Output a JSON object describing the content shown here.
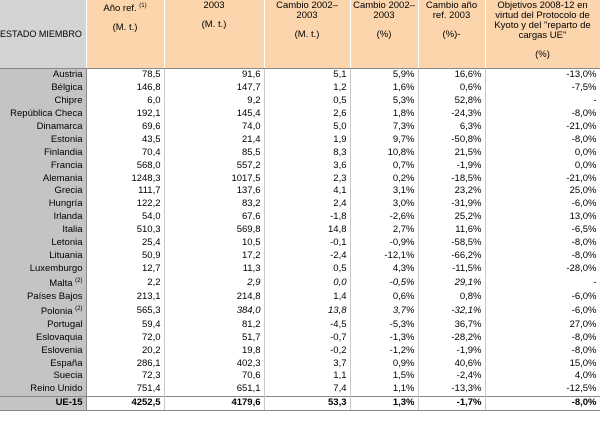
{
  "table": {
    "header": [
      {
        "text": "ESTADO MIEMBRO"
      },
      {
        "text": "Año ref.",
        "note": "(1)",
        "unit": "(M. t.)"
      },
      {
        "text": "2003",
        "unit": "(M. t.)"
      },
      {
        "text": "Cambio 2002–2003",
        "unit": "(M. t.)"
      },
      {
        "text": "Cambio 2002–2003",
        "unit": "(%)"
      },
      {
        "text": "Cambio año ref. 2003",
        "unit": "(%)-"
      },
      {
        "text": "Objetivos 2008-12 en virtud del Protocolo de Kyoto  y del \"reparto de cargas UE\"",
        "unit": "(%)"
      }
    ],
    "rows": [
      {
        "name": "Austria",
        "values": [
          "78,5",
          "91,6",
          "5,1",
          "5,9%",
          "16,6%",
          "-13,0%"
        ]
      },
      {
        "name": "Bélgica",
        "values": [
          "146,8",
          "147,7",
          "1,2",
          "1,6%",
          "0,6%",
          "-7,5%"
        ]
      },
      {
        "name": "Chipre",
        "values": [
          "6,0",
          "9,2",
          "0,5",
          "5,3%",
          "52,8%",
          "-"
        ]
      },
      {
        "name": "República Checa",
        "values": [
          "192,1",
          "145,4",
          "2,6",
          "1,8%",
          "-24,3%",
          "-8,0%"
        ]
      },
      {
        "name": "Dinamarca",
        "values": [
          "69,6",
          "74,0",
          "5,0",
          "7,3%",
          "6,3%",
          "-21,0%"
        ]
      },
      {
        "name": "Estonia",
        "values": [
          "43,5",
          "21,4",
          "1,9",
          "9,7%",
          "-50,8%",
          "-8,0%"
        ]
      },
      {
        "name": "Finlandia",
        "values": [
          "70,4",
          "85,5",
          "8,3",
          "10,8%",
          "21,5%",
          "0,0%"
        ]
      },
      {
        "name": "Francia",
        "values": [
          "568,0",
          "557,2",
          "3,6",
          "0,7%",
          "-1,9%",
          "0,0%"
        ]
      },
      {
        "name": "Alemania",
        "values": [
          "1248,3",
          "1017,5",
          "2,3",
          "0,2%",
          "-18,5%",
          "-21,0%"
        ]
      },
      {
        "name": "Grecia",
        "values": [
          "111,7",
          "137,6",
          "4,1",
          "3,1%",
          "23,2%",
          "25,0%"
        ]
      },
      {
        "name": "Hungría",
        "values": [
          "122,2",
          "83,2",
          "2,4",
          "3,0%",
          "-31,9%",
          "-6,0%"
        ]
      },
      {
        "name": "Irlanda",
        "values": [
          "54,0",
          "67,6",
          "-1,8",
          "-2,6%",
          "25,2%",
          "13,0%"
        ]
      },
      {
        "name": "Italia",
        "values": [
          "510,3",
          "569,8",
          "14,8",
          "2,7%",
          "11,6%",
          "-6,5%"
        ]
      },
      {
        "name": "Letonia",
        "values": [
          "25,4",
          "10,5",
          "-0,1",
          "-0,9%",
          "-58,5%",
          "-8,0%"
        ]
      },
      {
        "name": "Lituania",
        "values": [
          "50,9",
          "17,2",
          "-2,4",
          "-12,1%",
          "-66,2%",
          "-8,0%"
        ]
      },
      {
        "name": "Luxemburgo",
        "values": [
          "12,7",
          "11,3",
          "0,5",
          "4,3%",
          "-11,5%",
          "-28,0%"
        ]
      },
      {
        "name": "Malta",
        "note": "(2)",
        "values": [
          "2,2",
          "2,9",
          "0,0",
          "-0,5%",
          "29,1%",
          "-"
        ]
      },
      {
        "name": "Países Bajos",
        "values": [
          "213,1",
          "214,8",
          "1,4",
          "0,6%",
          "0,8%",
          "-6,0%"
        ]
      },
      {
        "name": "Polonia",
        "note": "(2)",
        "values": [
          "565,3",
          "384,0",
          "13,8",
          "3,7%",
          "-32,1%",
          "-6,0%"
        ]
      },
      {
        "name": "Portugal",
        "values": [
          "59,4",
          "81,2",
          "-4,5",
          "-5,3%",
          "36,7%",
          "27,0%"
        ]
      },
      {
        "name": "Eslovaquia",
        "values": [
          "72,0",
          "51,7",
          "-0,7",
          "-1,3%",
          "-28,2%",
          "-8,0%"
        ]
      },
      {
        "name": "Eslovenia",
        "values": [
          "20,2",
          "19,8",
          "-0,2",
          "-1,2%",
          "-1,9%",
          "-8,0%"
        ]
      },
      {
        "name": "España",
        "values": [
          "286,1",
          "402,3",
          "3,7",
          "0,9%",
          "40,6%",
          "15,0%"
        ]
      },
      {
        "name": "Suecia",
        "values": [
          "72,3",
          "70,6",
          "1,1",
          "1,5%",
          "-2,4%",
          "4,0%"
        ]
      },
      {
        "name": "Reino Unido",
        "values": [
          "751,4",
          "651,1",
          "7,4",
          "1,1%",
          "-13,3%",
          "-12,5%"
        ]
      },
      {
        "name": "UE-15",
        "values": [
          "4252,5",
          "4179,6",
          "53,3",
          "1,3%",
          "-1,7%",
          "-8,0%"
        ]
      }
    ]
  }
}
